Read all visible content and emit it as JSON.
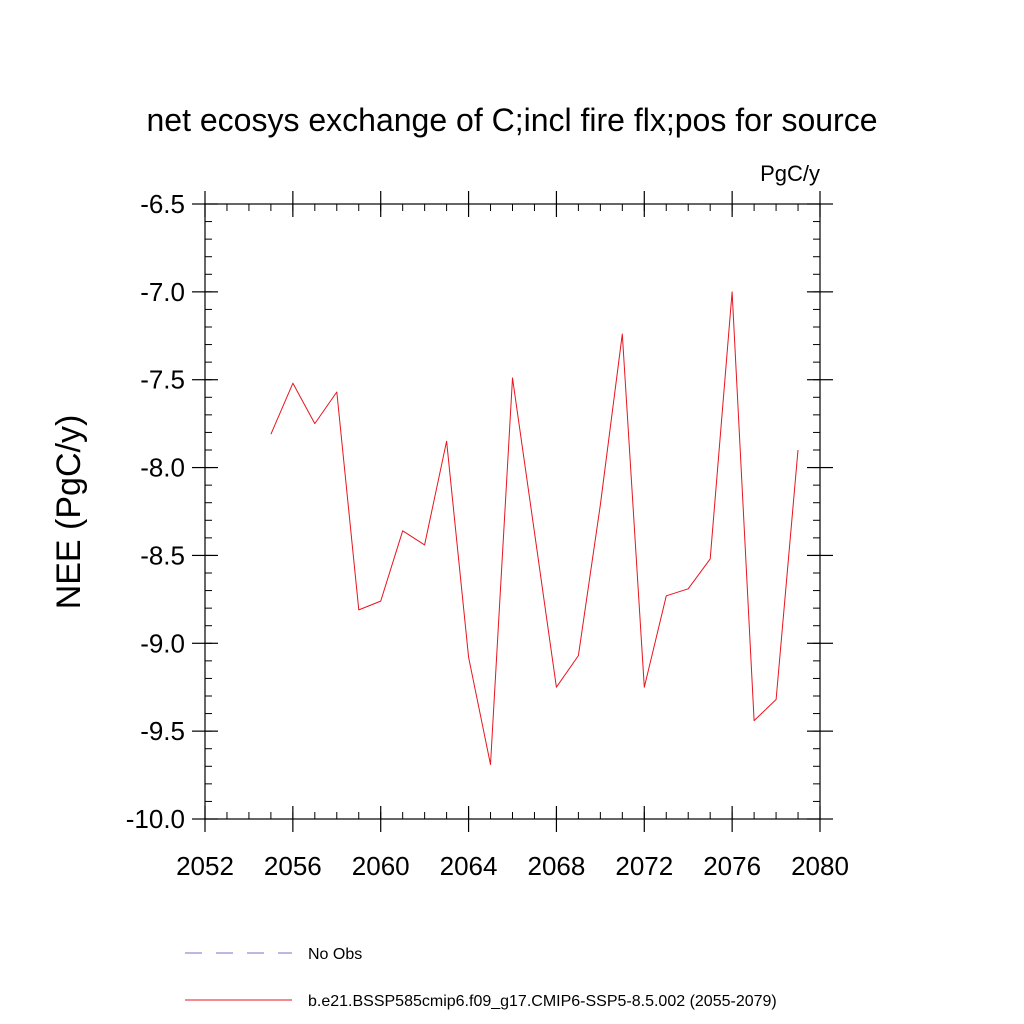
{
  "chart_data": {
    "type": "line",
    "title": "net ecosys exchange of C;incl fire flx;pos for source",
    "units": "PgC/y",
    "xlabel": "",
    "ylabel": "NEE  (PgC/y)",
    "xlim": [
      2052,
      2080
    ],
    "ylim": [
      -10.0,
      -6.5
    ],
    "x_ticks": [
      2052,
      2056,
      2060,
      2064,
      2068,
      2072,
      2076,
      2080
    ],
    "x_tick_labels": [
      "2052",
      "2056",
      "2060",
      "2064",
      "2068",
      "2072",
      "2076",
      "2080"
    ],
    "y_ticks": [
      -6.5,
      -7.0,
      -7.5,
      -8.0,
      -8.5,
      -9.0,
      -9.5,
      -10.0
    ],
    "y_tick_labels": [
      "-6.5",
      "-7.0",
      "-7.5",
      "-8.0",
      "-8.5",
      "-9.0",
      "-9.5",
      "-10.0"
    ],
    "series": [
      {
        "name": "b.e21.BSSP585cmip6.f09_g17.CMIP6-SSP5-8.5.002 (2055-2079)",
        "color": "#e8141e",
        "x": [
          2055,
          2056,
          2057,
          2058,
          2059,
          2060,
          2061,
          2062,
          2063,
          2064,
          2065,
          2066,
          2067,
          2068,
          2069,
          2070,
          2071,
          2072,
          2073,
          2074,
          2075,
          2076,
          2077,
          2078,
          2079
        ],
        "values": [
          -7.81,
          -7.52,
          -7.75,
          -7.57,
          -8.81,
          -8.76,
          -8.36,
          -8.44,
          -7.85,
          -9.08,
          -9.69,
          -7.49,
          -8.37,
          -9.25,
          -9.07,
          -8.21,
          -7.24,
          -9.25,
          -8.73,
          -8.69,
          -8.52,
          -7.0,
          -9.44,
          -9.32,
          -7.9
        ]
      }
    ],
    "legend": [
      {
        "label": "No Obs",
        "style": "dashed",
        "color": "#7a72c8"
      },
      {
        "label": "b.e21.BSSP585cmip6.f09_g17.CMIP6-SSP5-8.5.002 (2055-2079)",
        "style": "solid",
        "color": "#e8141e"
      }
    ],
    "legend_position": "bottom"
  }
}
